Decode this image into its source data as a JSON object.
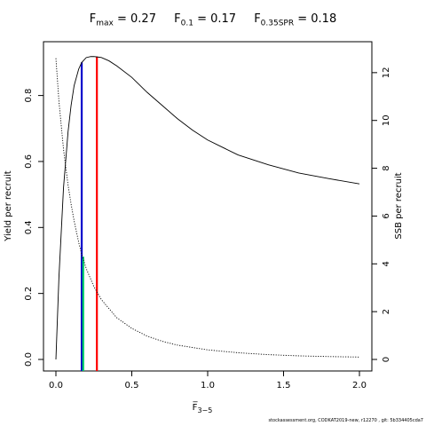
{
  "title": {
    "fmax_symbol": "F",
    "fmax_sub": "max",
    "fmax_value": " = 0.27",
    "f01_symbol": "F",
    "f01_sub": "0.1",
    "f01_value": " = 0.17",
    "f35_symbol": "F",
    "f35_sub": "0.35SPR",
    "f35_value": " = 0.18"
  },
  "footer": "stockassessment.org, CODKAT2019-new, r12270 , git: 5b334405cda7",
  "chart_data": {
    "type": "line",
    "xlabel": "F̅",
    "xlabel_sub": "3−5",
    "ylabel": "Yield per recruit",
    "y2label": "SSB per recruit",
    "xlim": [
      0,
      2
    ],
    "ylim": [
      0,
      0.92
    ],
    "y2lim": [
      0,
      12.7
    ],
    "x_ticks": [
      "0.0",
      "0.5",
      "1.0",
      "1.5",
      "2.0"
    ],
    "y_ticks": [
      "0.0",
      "0.2",
      "0.4",
      "0.6",
      "0.8"
    ],
    "y2_ticks": [
      "0",
      "2",
      "4",
      "6",
      "8",
      "10",
      "12"
    ],
    "series": [
      {
        "role": "yield",
        "style": "solid",
        "color": "#000000",
        "x": [
          0,
          0.02,
          0.05,
          0.08,
          0.1,
          0.12,
          0.15,
          0.17,
          0.2,
          0.23,
          0.25,
          0.27,
          0.3,
          0.35,
          0.4,
          0.5,
          0.6,
          0.7,
          0.8,
          0.9,
          1.0,
          1.2,
          1.4,
          1.6,
          1.8,
          2.0
        ],
        "values": [
          0.0,
          0.25,
          0.52,
          0.69,
          0.77,
          0.83,
          0.88,
          0.9,
          0.915,
          0.918,
          0.918,
          0.917,
          0.915,
          0.905,
          0.89,
          0.855,
          0.81,
          0.77,
          0.73,
          0.695,
          0.665,
          0.62,
          0.59,
          0.565,
          0.548,
          0.532
        ]
      },
      {
        "role": "ssb",
        "style": "dotted",
        "color": "#000000",
        "x": [
          0,
          0.02,
          0.05,
          0.08,
          0.1,
          0.12,
          0.15,
          0.17,
          0.2,
          0.25,
          0.3,
          0.4,
          0.5,
          0.6,
          0.7,
          0.8,
          1.0,
          1.2,
          1.4,
          1.6,
          1.8,
          2.0
        ],
        "values": [
          12.6,
          10.8,
          8.8,
          7.3,
          6.5,
          5.8,
          4.9,
          4.4,
          3.8,
          3.05,
          2.5,
          1.75,
          1.3,
          0.98,
          0.76,
          0.6,
          0.4,
          0.28,
          0.2,
          0.15,
          0.12,
          0.1
        ]
      }
    ],
    "reference_lines": [
      {
        "name": "Fmax",
        "x": 0.27,
        "to_y": 0.918,
        "axis": "left",
        "color": "#ff0000"
      },
      {
        "name": "F0.1",
        "x": 0.17,
        "to_y": 0.9,
        "axis": "left",
        "color": "#0000cc"
      },
      {
        "name": "F0.35SPR",
        "x": 0.18,
        "to_y": 4.3,
        "axis": "right",
        "color": "#00cc66"
      }
    ]
  }
}
